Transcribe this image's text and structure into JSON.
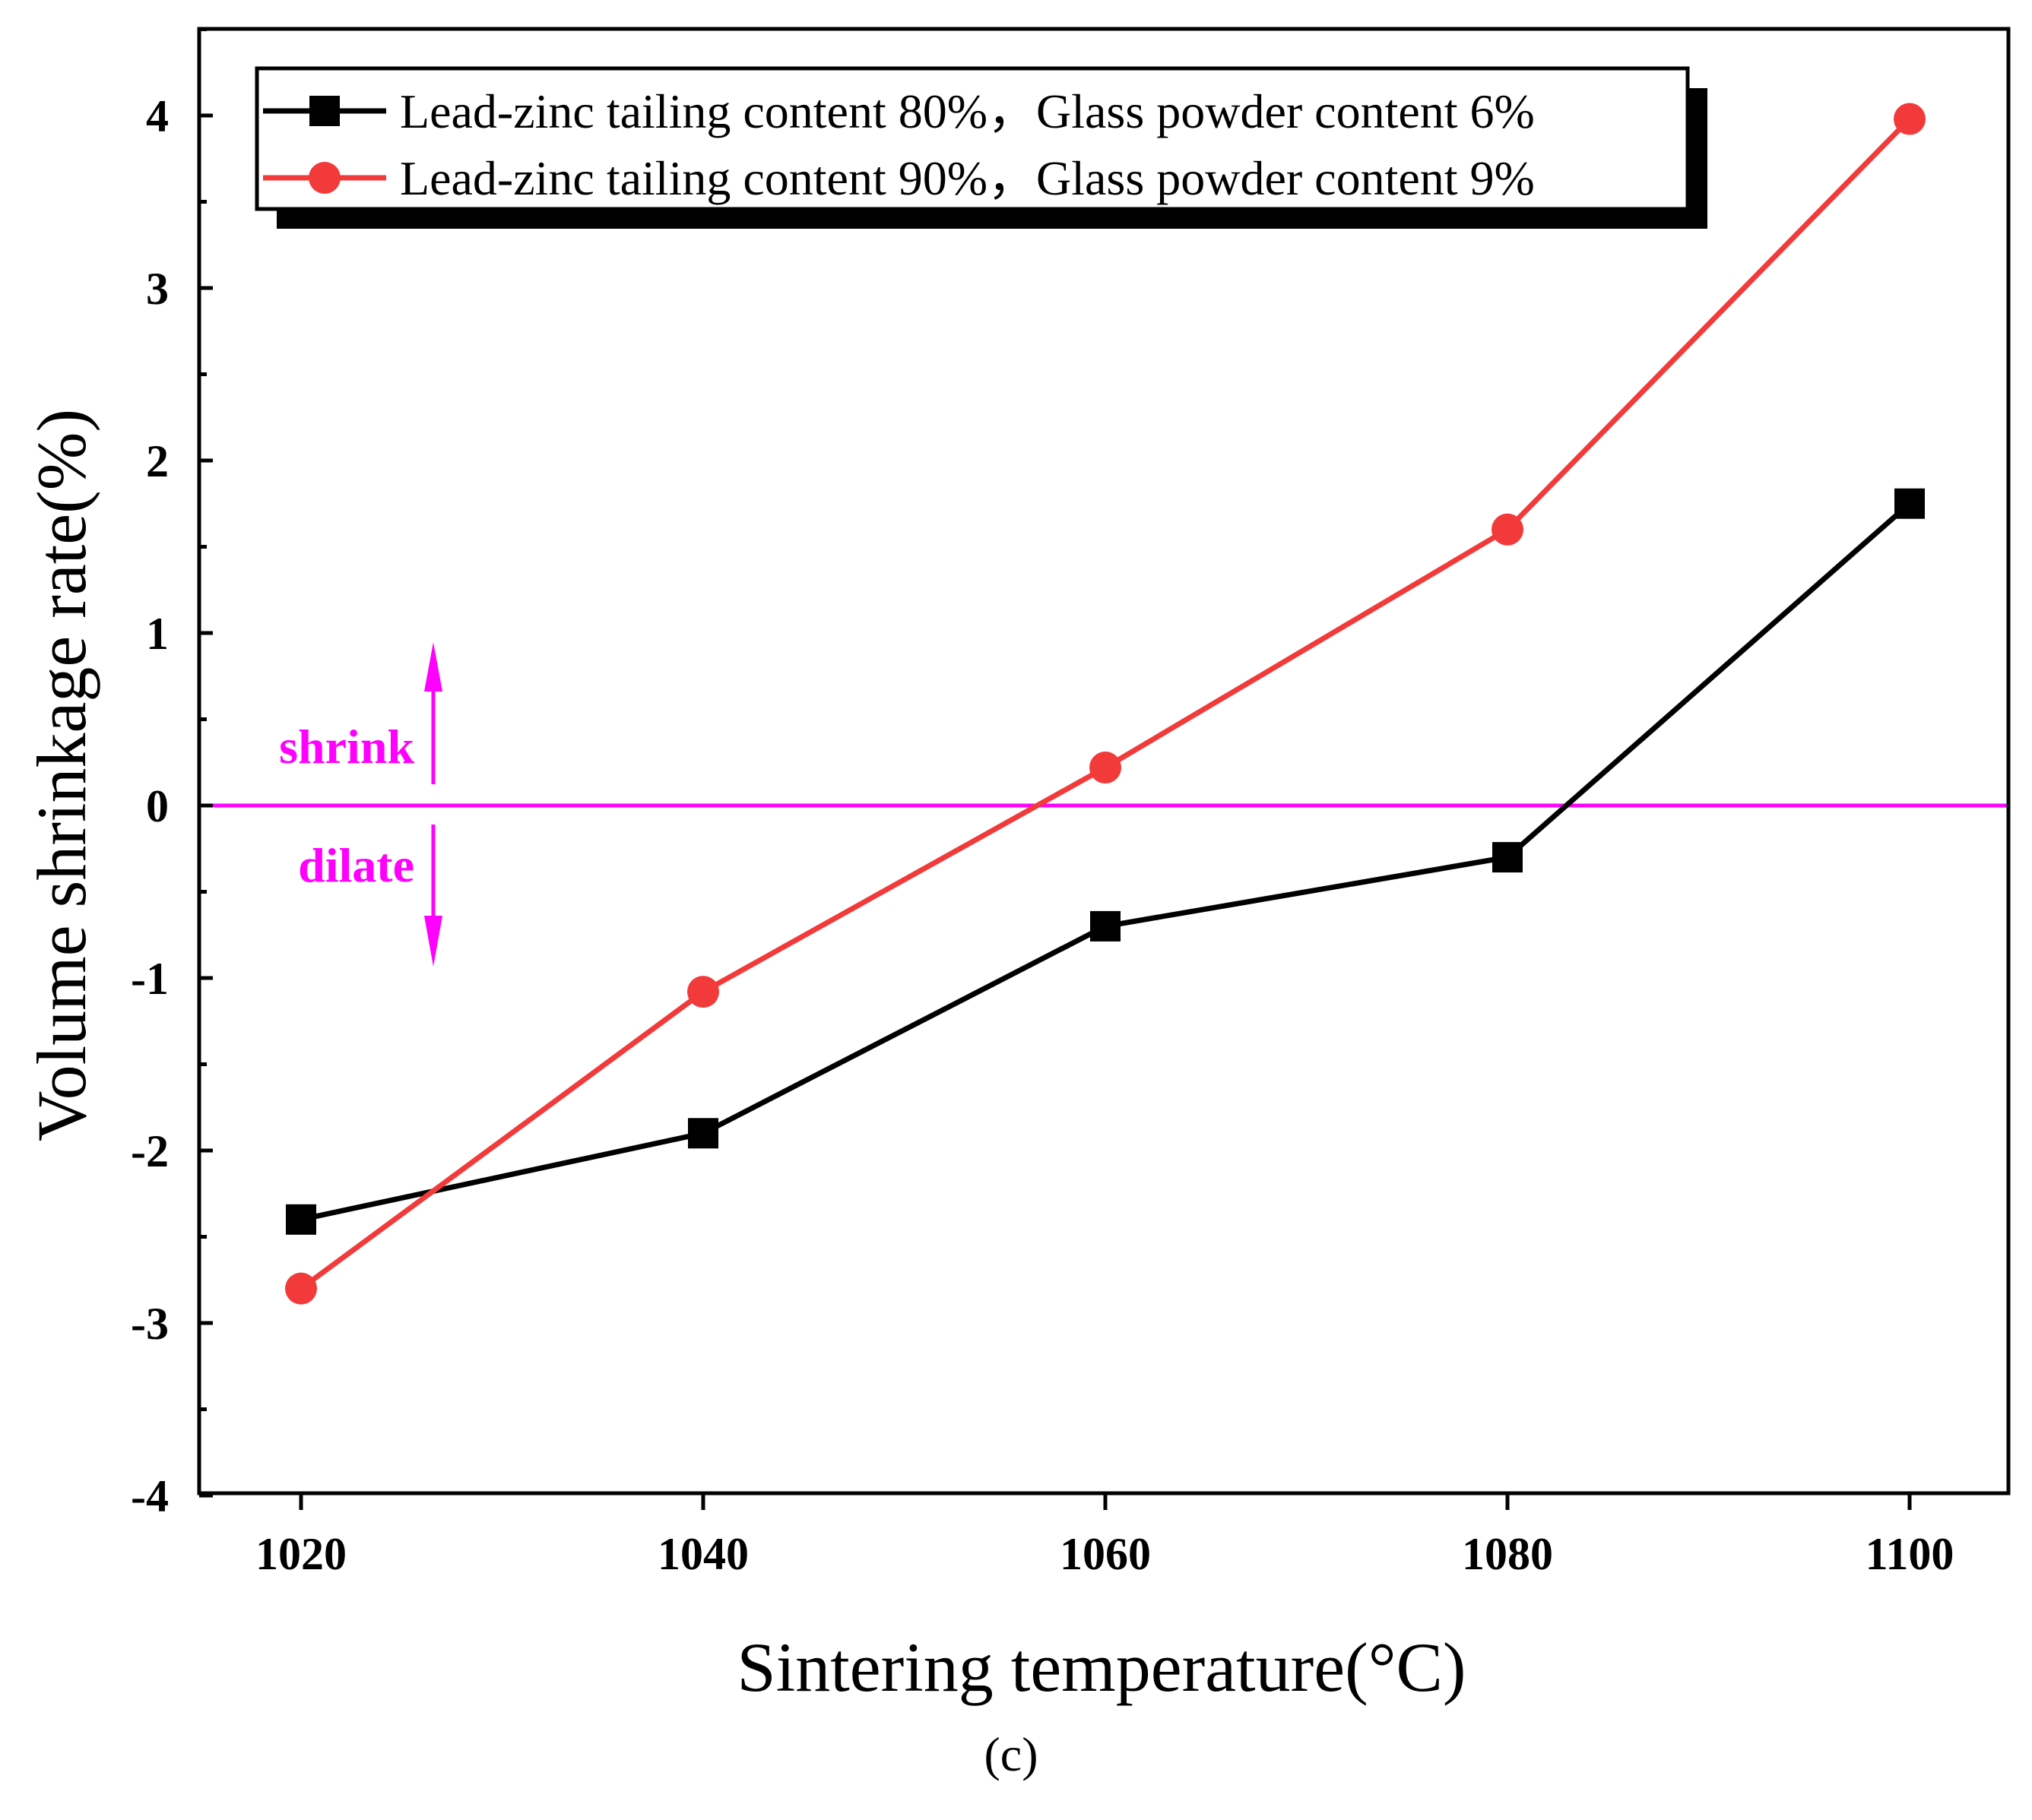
{
  "chart_data": {
    "type": "line",
    "title": "",
    "xlabel": "Sintering temperature(°C)",
    "ylabel": "Volume shrinkage rate(%)",
    "caption": "(c)",
    "x": [
      1020,
      1040,
      1060,
      1080,
      1100
    ],
    "xlim": [
      1015,
      1105
    ],
    "ylim": [
      -4,
      4.5
    ],
    "xticks": [
      1020,
      1040,
      1060,
      1080,
      1100
    ],
    "yticks": [
      -4,
      -3,
      -2,
      -1,
      0,
      1,
      2,
      3,
      4
    ],
    "grid": false,
    "legend_position": "top",
    "series": [
      {
        "name": "Lead-zinc tailing content 80%，Glass powder content 6%",
        "marker": "square",
        "color": "#000000",
        "values": [
          -2.4,
          -1.9,
          -0.7,
          -0.3,
          1.75
        ]
      },
      {
        "name": "Lead-zinc tailing content 90%，Glass powder content 9%",
        "marker": "circle",
        "color": "#f23a3a",
        "values": [
          -2.8,
          -1.08,
          0.22,
          1.6,
          3.98
        ]
      }
    ],
    "reference_line": {
      "y": 0,
      "color": "#ff00ff"
    },
    "annotations": [
      {
        "text": "shrink",
        "direction": "up",
        "color": "#ff00ff"
      },
      {
        "text": "dilate",
        "direction": "down",
        "color": "#ff00ff"
      }
    ]
  }
}
